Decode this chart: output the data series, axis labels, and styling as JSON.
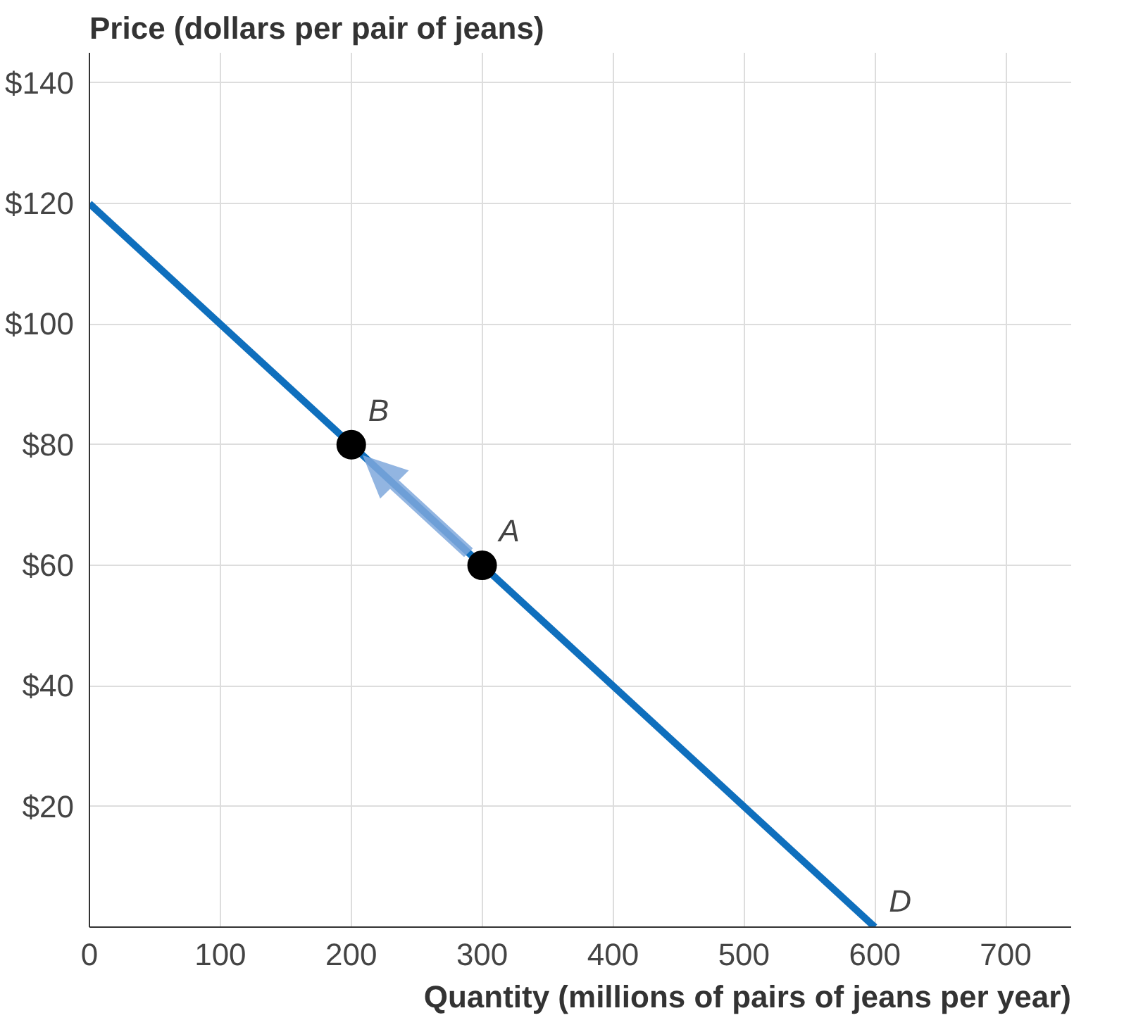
{
  "chart_data": {
    "type": "line",
    "xlabel": "Quantity (millions of pairs of jeans per year)",
    "ylabel": "Price (dollars per pair of jeans)",
    "series": [
      {
        "name": "D",
        "color": "#0f6fbd",
        "x": [
          0,
          600
        ],
        "values": [
          120,
          0
        ]
      },
      {
        "type": "scatter",
        "color": "#000000",
        "x": [
          200,
          300
        ],
        "values": [
          80,
          60
        ]
      }
    ],
    "annotations": [
      {
        "text": "B",
        "x": 200,
        "y": 80
      },
      {
        "text": "A",
        "x": 300,
        "y": 60
      }
    ],
    "xlim": [
      0,
      750
    ],
    "ylim": [
      0,
      145
    ],
    "xticks": [
      {
        "value": 0,
        "label": "0"
      },
      100,
      200,
      300,
      400,
      500,
      600,
      700
    ],
    "yticks": [
      {
        "value": 0,
        "label": null
      },
      {
        "value": 20,
        "label": "$20"
      },
      {
        "value": 40,
        "label": "$40"
      },
      {
        "value": 60,
        "label": "$60"
      },
      {
        "value": 80,
        "label": "$80"
      },
      {
        "value": 100,
        "label": "$100"
      },
      {
        "value": 120,
        "label": "$120"
      },
      {
        "value": 140,
        "label": "$140"
      }
    ],
    "grid": true,
    "legend": false
  }
}
